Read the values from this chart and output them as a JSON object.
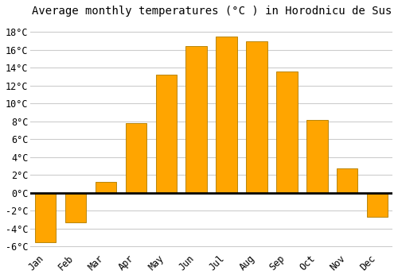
{
  "title": "Average monthly temperatures (°C ) in Horodnicu de Sus",
  "months": [
    "Jan",
    "Feb",
    "Mar",
    "Apr",
    "May",
    "Jun",
    "Jul",
    "Aug",
    "Sep",
    "Oct",
    "Nov",
    "Dec"
  ],
  "temperatures": [
    -5.5,
    -3.3,
    1.2,
    7.8,
    13.2,
    16.4,
    17.5,
    17.0,
    13.6,
    8.2,
    2.7,
    -2.7
  ],
  "bar_color": "#FFA500",
  "bar_edge_color": "#B8860B",
  "background_color": "#FFFFFF",
  "grid_color": "#CCCCCC",
  "ylim": [
    -6.5,
    19
  ],
  "yticks": [
    -6,
    -4,
    -2,
    0,
    2,
    4,
    6,
    8,
    10,
    12,
    14,
    16,
    18
  ],
  "title_fontsize": 10,
  "tick_fontsize": 8.5
}
